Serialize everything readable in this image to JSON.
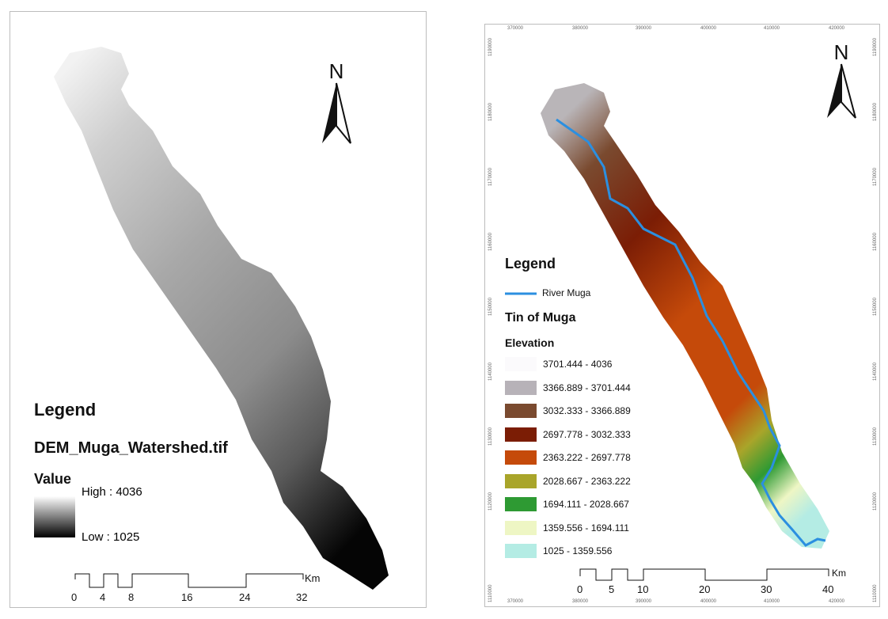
{
  "left_map": {
    "north_label": "N",
    "legend_title": "Legend",
    "layer_name": "DEM_Muga_Watershed.tif",
    "value_label": "Value",
    "high_label": "High : 4036",
    "low_label": "Low : 1025",
    "scale_labels": [
      "0",
      "4",
      "8",
      "16",
      "24",
      "32"
    ],
    "scale_unit": "Km"
  },
  "right_map": {
    "north_label": "N",
    "legend_title": "Legend",
    "river_label": "River Muga",
    "river_color": "#2b8fe0",
    "tin_title": "Tin of Muga",
    "elevation_label": "Elevation",
    "classes": [
      {
        "label": "3701.444 - 4036",
        "color": "#fbfafc"
      },
      {
        "label": "3366.889 - 3701.444",
        "color": "#b7b2b8"
      },
      {
        "label": "3032.333 - 3366.889",
        "color": "#7a4a2f"
      },
      {
        "label": "2697.778 - 3032.333",
        "color": "#7b1d05"
      },
      {
        "label": "2363.222 - 2697.778",
        "color": "#c54a0a"
      },
      {
        "label": "2028.667 - 2363.222",
        "color": "#a9a52a"
      },
      {
        "label": "1694.111 - 2028.667",
        "color": "#2e9a33"
      },
      {
        "label": "1359.556 - 1694.111",
        "color": "#eef6c4"
      },
      {
        "label": "1025 - 1359.556",
        "color": "#b4ece4"
      }
    ],
    "scale_labels": [
      "0",
      "5",
      "10",
      "20",
      "30",
      "40"
    ],
    "scale_unit": "Km",
    "x_ticks": [
      "370000",
      "380000",
      "390000",
      "400000",
      "410000",
      "420000"
    ],
    "y_ticks": [
      "1190000",
      "1180000",
      "1170000",
      "1160000",
      "1150000",
      "1140000",
      "1130000",
      "1120000",
      "1110000"
    ]
  }
}
